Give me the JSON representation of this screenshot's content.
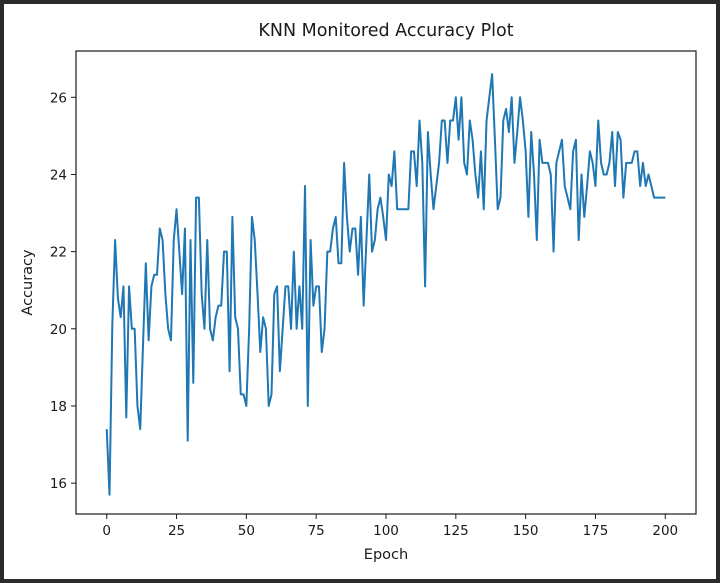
{
  "chart_data": {
    "type": "line",
    "title": "KNN Monitored Accuracy Plot",
    "xlabel": "Epoch",
    "ylabel": "Accuracy",
    "xlim": [
      -11,
      211
    ],
    "ylim": [
      15.2,
      27.2
    ],
    "xticks": [
      0,
      25,
      50,
      75,
      100,
      125,
      150,
      175,
      200
    ],
    "yticks": [
      16,
      18,
      20,
      22,
      24,
      26
    ],
    "series": [
      {
        "color": "#1f77b4",
        "x": [
          0,
          1,
          2,
          3,
          4,
          5,
          6,
          7,
          8,
          9,
          10,
          11,
          12,
          13,
          14,
          15,
          16,
          17,
          18,
          19,
          20,
          21,
          22,
          23,
          24,
          25,
          26,
          27,
          28,
          29,
          30,
          31,
          32,
          33,
          34,
          35,
          36,
          37,
          38,
          39,
          40,
          41,
          42,
          43,
          44,
          45,
          46,
          47,
          48,
          49,
          50,
          51,
          52,
          53,
          54,
          55,
          56,
          57,
          58,
          59,
          60,
          61,
          62,
          63,
          64,
          65,
          66,
          67,
          68,
          69,
          70,
          71,
          72,
          73,
          74,
          75,
          76,
          77,
          78,
          79,
          80,
          81,
          82,
          83,
          84,
          85,
          86,
          87,
          88,
          89,
          90,
          91,
          92,
          93,
          94,
          95,
          96,
          97,
          98,
          99,
          100,
          101,
          102,
          103,
          104,
          105,
          106,
          107,
          108,
          109,
          110,
          111,
          112,
          113,
          114,
          115,
          116,
          117,
          118,
          119,
          120,
          121,
          122,
          123,
          124,
          125,
          126,
          127,
          128,
          129,
          130,
          131,
          132,
          133,
          134,
          135,
          136,
          137,
          138,
          139,
          140,
          141,
          142,
          143,
          144,
          145,
          146,
          147,
          148,
          149,
          150,
          151,
          152,
          153,
          154,
          155,
          156,
          157,
          158,
          159,
          160,
          161,
          162,
          163,
          164,
          165,
          166,
          167,
          168,
          169,
          170,
          171,
          172,
          173,
          174,
          175,
          176,
          177,
          178,
          179,
          180,
          181,
          182,
          183,
          184,
          185,
          186,
          187,
          188,
          189,
          190,
          191,
          192,
          193,
          194,
          195,
          196,
          197,
          198,
          199,
          200
        ],
        "y": [
          17.4,
          15.7,
          20.1,
          22.3,
          20.8,
          20.3,
          21.1,
          17.7,
          21.1,
          20.0,
          20.0,
          18.0,
          17.4,
          19.6,
          21.7,
          19.7,
          21.1,
          21.4,
          21.4,
          22.6,
          22.3,
          20.9,
          20.0,
          19.7,
          22.3,
          23.1,
          22.0,
          20.9,
          22.6,
          17.1,
          22.3,
          18.6,
          23.4,
          23.4,
          20.9,
          20.0,
          22.3,
          20.0,
          19.7,
          20.3,
          20.6,
          20.6,
          22.0,
          22.0,
          18.9,
          22.9,
          20.3,
          20.0,
          18.3,
          18.3,
          18.0,
          20.0,
          22.9,
          22.3,
          20.9,
          19.4,
          20.3,
          20.0,
          18.0,
          18.3,
          20.9,
          21.1,
          18.9,
          20.0,
          21.1,
          21.1,
          20.0,
          22.0,
          20.0,
          21.1,
          20.0,
          23.7,
          18.0,
          22.3,
          20.6,
          21.1,
          21.1,
          19.4,
          20.0,
          22.0,
          22.0,
          22.6,
          22.9,
          21.7,
          21.7,
          24.3,
          22.9,
          22.0,
          22.6,
          22.6,
          21.4,
          22.9,
          20.6,
          22.3,
          24.0,
          22.0,
          22.3,
          23.1,
          23.4,
          22.9,
          22.3,
          24.0,
          23.7,
          24.6,
          23.1,
          23.1,
          23.1,
          23.1,
          23.1,
          24.6,
          24.6,
          23.7,
          25.4,
          24.3,
          21.1,
          25.1,
          24.0,
          23.1,
          23.7,
          24.3,
          25.4,
          25.4,
          24.3,
          25.4,
          25.4,
          26.0,
          24.9,
          26.0,
          24.3,
          24.0,
          25.4,
          24.9,
          24.0,
          23.4,
          24.6,
          23.1,
          25.4,
          26.0,
          26.6,
          24.9,
          23.1,
          23.4,
          25.4,
          25.7,
          25.1,
          26.0,
          24.3,
          25.1,
          26.0,
          25.4,
          24.6,
          22.9,
          25.1,
          24.0,
          22.3,
          24.9,
          24.3,
          24.3,
          24.3,
          24.0,
          22.0,
          24.3,
          24.6,
          24.9,
          23.7,
          23.4,
          23.1,
          24.6,
          24.9,
          22.3,
          24.0,
          22.9,
          23.7,
          24.6,
          24.3,
          23.7,
          25.4,
          24.3,
          24.0,
          24.0,
          24.3,
          25.1,
          23.7,
          25.1,
          24.9,
          23.4,
          24.3,
          24.3,
          24.3,
          24.6,
          24.6,
          23.7,
          24.3,
          23.7,
          24.0,
          23.7,
          23.4,
          23.4,
          23.4,
          23.4,
          23.4
        ]
      }
    ]
  }
}
